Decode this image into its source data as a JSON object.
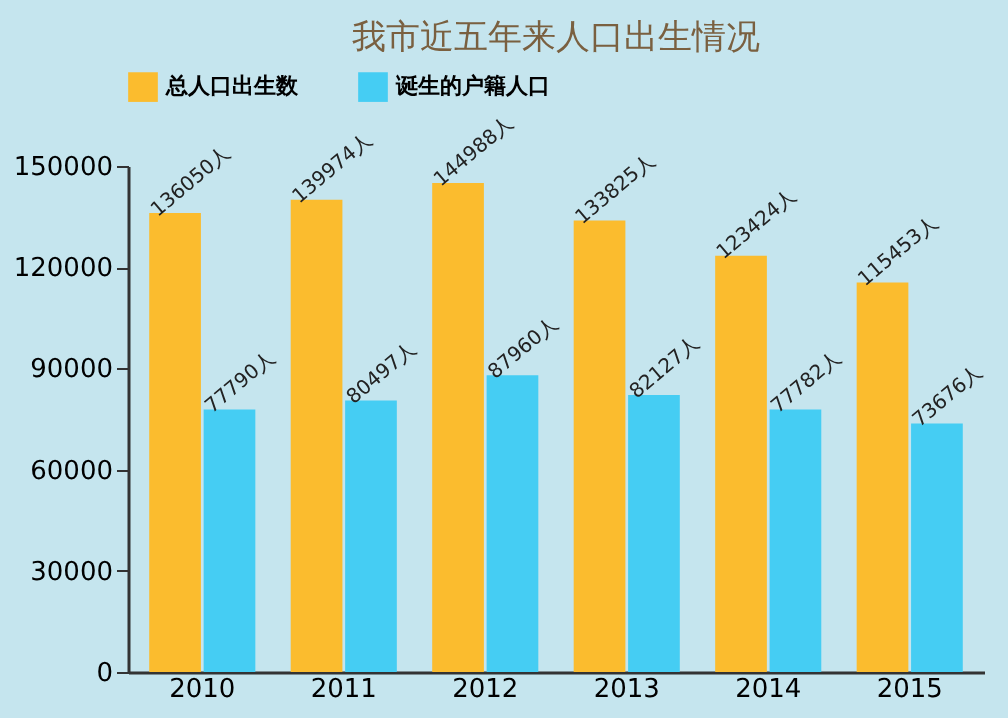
{
  "chart_data": {
    "type": "bar",
    "title": "我市近五年来人口出生情况",
    "categories": [
      "2010",
      "2011",
      "2012",
      "2013",
      "2014",
      "2015"
    ],
    "series": [
      {
        "name": "总人口出生数",
        "color": "#fbbc2e",
        "values": [
          136050,
          139974,
          144988,
          133825,
          123424,
          115453
        ],
        "value_labels": [
          "136050人",
          "139974人",
          "144988人",
          "133825人",
          "123424人",
          "115453人"
        ]
      },
      {
        "name": "诞生的户籍人口",
        "color": "#45cdf3",
        "values": [
          77790,
          80497,
          87960,
          82127,
          77782,
          73676
        ],
        "value_labels": [
          "77790人",
          "80497人",
          "87960人",
          "82127人",
          "77782人",
          "73676人"
        ]
      }
    ],
    "ylim": [
      0,
      150000
    ],
    "yticks": [
      0,
      30000,
      60000,
      90000,
      120000,
      150000
    ],
    "grid": false,
    "legend": "top"
  }
}
